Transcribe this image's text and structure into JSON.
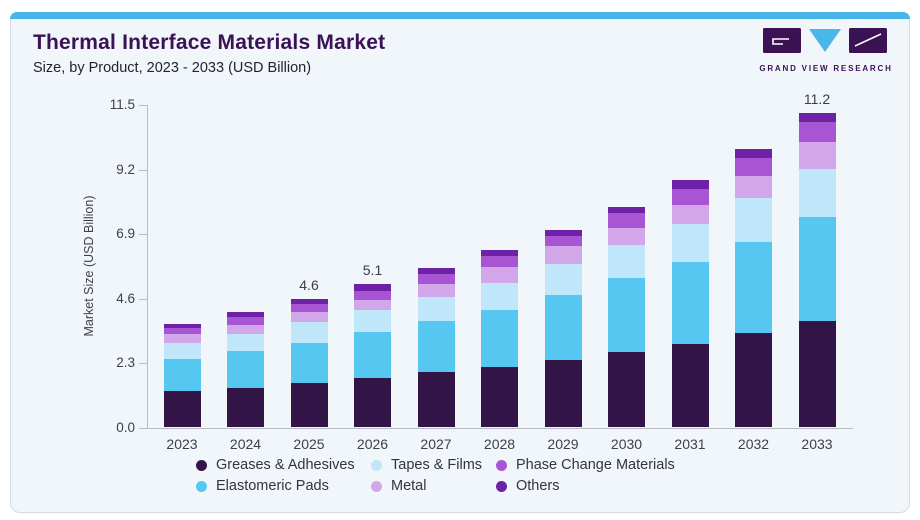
{
  "header": {
    "title": "Thermal Interface Materials Market",
    "subtitle": "Size, by Product, 2023 - 2033 (USD Billion)"
  },
  "logo": {
    "text": "GRAND VIEW RESEARCH",
    "mark_color": "#3b1254",
    "triangle_color": "#49b8e9"
  },
  "colors": {
    "card_background": "#f1f6fa",
    "accent_top_bar": "#47b5e9",
    "title_text": "#3b1254",
    "axis_text": "#3f4049"
  },
  "chart_data": {
    "type": "stacked-bar",
    "title": "Thermal Interface Materials Market Size, by Product, 2023 - 2033 (USD Billion)",
    "ylabel": "Market Size (USD Billion)",
    "xlabel": "",
    "ylim": [
      0,
      11.5
    ],
    "ytick_labels": [
      "0.0",
      "2.3",
      "4.6",
      "6.9",
      "9.2",
      "11.5"
    ],
    "grid": false,
    "legend_position": "bottom",
    "categories": [
      "2023",
      "2024",
      "2025",
      "2026",
      "2027",
      "2028",
      "2029",
      "2030",
      "2031",
      "2032",
      "2033"
    ],
    "series": [
      {
        "name": "Greases & Adhesives",
        "color": "#331447",
        "values": [
          1.3,
          1.42,
          1.57,
          1.75,
          1.96,
          2.14,
          2.4,
          2.7,
          2.98,
          3.36,
          3.8
        ]
      },
      {
        "name": "Elastomeric Pads",
        "color": "#56c7f1",
        "values": [
          1.15,
          1.3,
          1.46,
          1.66,
          1.83,
          2.06,
          2.34,
          2.63,
          2.92,
          3.26,
          3.7
        ]
      },
      {
        "name": "Tapes & Films",
        "color": "#bfe6f9",
        "values": [
          0.56,
          0.6,
          0.73,
          0.78,
          0.87,
          0.96,
          1.08,
          1.17,
          1.35,
          1.56,
          1.73
        ]
      },
      {
        "name": "Metal",
        "color": "#d1a7ea",
        "values": [
          0.31,
          0.34,
          0.35,
          0.35,
          0.46,
          0.58,
          0.64,
          0.6,
          0.68,
          0.77,
          0.96
        ]
      },
      {
        "name": "Phase Change Materials",
        "color": "#a855d4",
        "values": [
          0.24,
          0.29,
          0.28,
          0.33,
          0.35,
          0.36,
          0.36,
          0.54,
          0.58,
          0.66,
          0.7
        ]
      },
      {
        "name": "Others",
        "color": "#6c21a6",
        "values": [
          0.14,
          0.16,
          0.21,
          0.23,
          0.22,
          0.22,
          0.24,
          0.24,
          0.32,
          0.31,
          0.31
        ]
      }
    ],
    "total_labels": [
      "",
      "",
      "4.6",
      "5.1",
      "",
      "",
      "",
      "",
      "",
      "",
      "11.2"
    ],
    "legend_order": [
      "Greases & Adhesives",
      "Tapes & Films",
      "Phase Change Materials",
      "Elastomeric Pads",
      "Metal",
      "Others"
    ]
  }
}
